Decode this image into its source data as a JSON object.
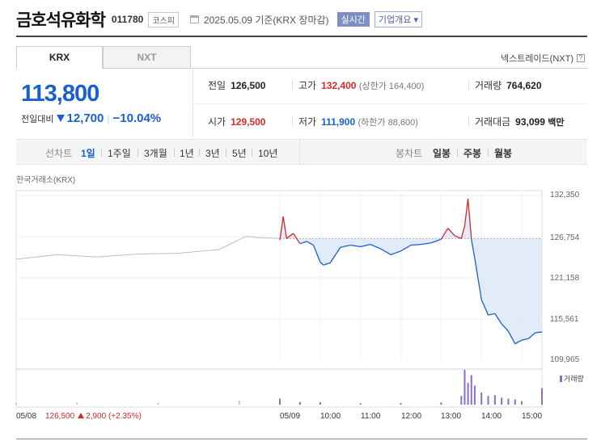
{
  "header": {
    "name": "금호석유화학",
    "code": "011780",
    "market_tag": "코스피",
    "date": "2025.05.09 기준(KRX 장마감)",
    "realtime": "실시간",
    "overview": "기업개요",
    "overview_arrow": "▾"
  },
  "tabs": [
    {
      "label": "KRX"
    },
    {
      "label": "NXT"
    }
  ],
  "nxt_link": {
    "label": "넥스트레이드(NXT)",
    "help": "?"
  },
  "price": {
    "current": "113,800",
    "change_label": "전일대비",
    "change": "12,700",
    "change_pct": "−10.04%",
    "separator": "|"
  },
  "stats": {
    "prev": {
      "label": "전일",
      "value": "126,500"
    },
    "high": {
      "label": "고가",
      "value": "132,400",
      "sub": "(상한가 164,400)"
    },
    "volume": {
      "label": "거래량",
      "value": "764,620"
    },
    "open": {
      "label": "시가",
      "value": "129,500"
    },
    "low": {
      "label": "저가",
      "value": "111,900",
      "sub": "(하한가 88,600)"
    },
    "amount": {
      "label": "거래대금",
      "value": "93,099",
      "unit": "백만"
    }
  },
  "line_chart_periods": {
    "label": "선차트",
    "items": [
      "1일",
      "1주일",
      "3개월",
      "1년",
      "3년",
      "5년",
      "10년"
    ],
    "active": "1일"
  },
  "candle_chart_periods": {
    "label": "봉차트",
    "items": [
      "일봉",
      "주봉",
      "월봉"
    ]
  },
  "source_label": "한국거래소(KRX)",
  "volume_legend": "거래량",
  "prev_day_info": {
    "date": "05/08",
    "price": "126,500",
    "change": "2,900",
    "pct": "(+2.35%)"
  },
  "colors": {
    "up": "#d42a2a",
    "down": "#1a5fd0",
    "fill": "#dbe6f6",
    "prev_line": "#bcbcbc",
    "volume": "#8a6fc9"
  },
  "chart_data": {
    "type": "line",
    "ylim": [
      109965,
      132350
    ],
    "y_ticks": [
      "132,350",
      "126,754",
      "121,158",
      "115,561",
      "109,965"
    ],
    "x_ticks": [
      "05/08",
      "05/09",
      "10:00",
      "11:00",
      "12:00",
      "13:00",
      "14:00",
      "15:00"
    ],
    "base_price": 126500,
    "series": [
      {
        "x": [
          "05/08 09:00",
          "05/08 10:00",
          "05/08 11:00",
          "05/08 12:00",
          "05/08 13:00",
          "05/08 14:00",
          "05/08 14:40",
          "05/08 15:00",
          "05/08 15:30"
        ],
        "values": [
          123700,
          124300,
          124000,
          124400,
          124500,
          125000,
          126800,
          126600,
          126500
        ]
      },
      {
        "x": [
          "09:00",
          "09:05",
          "09:10",
          "09:20",
          "09:30",
          "09:40",
          "09:50",
          "10:00",
          "10:05",
          "10:15",
          "10:30",
          "10:45",
          "11:00",
          "11:15",
          "11:30",
          "11:45",
          "12:00",
          "12:15",
          "12:30",
          "12:45",
          "13:00",
          "13:10",
          "13:20",
          "13:30",
          "13:35",
          "13:40",
          "13:45",
          "13:50",
          "14:00",
          "14:10",
          "14:20",
          "14:30",
          "14:40",
          "14:50",
          "15:00",
          "15:10",
          "15:20",
          "15:30"
        ],
        "values": [
          126300,
          129500,
          126500,
          127200,
          125800,
          126100,
          125600,
          123300,
          122900,
          123200,
          125300,
          125600,
          125400,
          125700,
          125100,
          124300,
          124800,
          125600,
          125700,
          125900,
          126400,
          127900,
          126900,
          126500,
          128200,
          131900,
          126400,
          123800,
          118200,
          116100,
          116300,
          114900,
          113900,
          112200,
          112700,
          112900,
          113700,
          113800
        ]
      }
    ],
    "volume": {
      "x": [
        "05/08 09:00",
        "05/08 10:30",
        "05/08 12:30",
        "05/08 14:30",
        "05/08 15:30",
        "09:00",
        "09:30",
        "10:00",
        "11:00",
        "12:00",
        "13:00",
        "13:30",
        "13:35",
        "13:40",
        "13:45",
        "13:50",
        "14:00",
        "14:10",
        "14:20",
        "14:30",
        "14:40",
        "14:50",
        "15:00",
        "15:30"
      ],
      "values": [
        2000,
        2500,
        2000,
        4500,
        3500,
        7000,
        3000,
        2800,
        1800,
        2000,
        2500,
        10000,
        40000,
        25000,
        34000,
        22000,
        14000,
        10000,
        11000,
        8000,
        7000,
        6000,
        4000,
        19000
      ]
    }
  }
}
